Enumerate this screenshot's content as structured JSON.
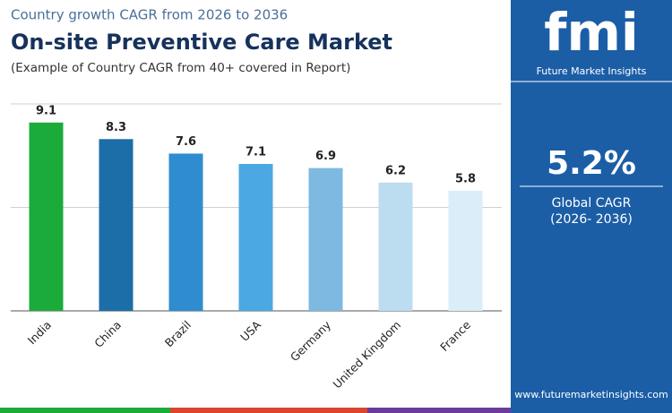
{
  "chart_data": {
    "type": "bar",
    "pretitle": "Country growth CAGR from 2026 to 2036",
    "title": "On-site Preventive Care Market",
    "subtitle": "(Example of Country CAGR from 40+ covered in Report)",
    "categories": [
      "India",
      "China",
      "Brazil",
      "USA",
      "Germany",
      "United Kingdom",
      "France"
    ],
    "values": [
      9.1,
      8.3,
      7.6,
      7.1,
      6.9,
      6.2,
      5.8
    ],
    "colors": [
      "#1bab3b",
      "#1c6ea8",
      "#2f8ccf",
      "#4ba8e3",
      "#7db9e0",
      "#bcdcf0",
      "#dbedf9"
    ],
    "ylim": [
      0,
      10
    ],
    "yticks": [
      0,
      5,
      10
    ],
    "grid": true
  },
  "panel": {
    "logo": "fmi",
    "brand": "Future Market Insights",
    "value": "5.2%",
    "label": "Global CAGR",
    "period": "(2026- 2036)",
    "url": "www.futuremarketinsights.com"
  }
}
